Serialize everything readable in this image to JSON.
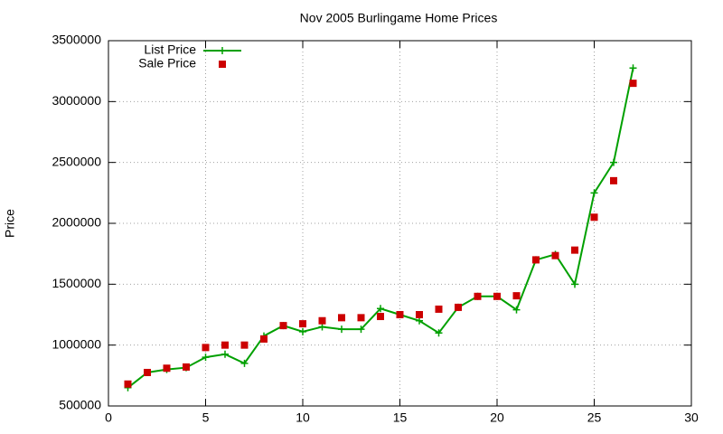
{
  "chart_data": {
    "type": "line",
    "title": "Nov 2005 Burlingame Home Prices",
    "y_label": "Price",
    "x": [
      1,
      2,
      3,
      4,
      5,
      6,
      7,
      8,
      9,
      10,
      11,
      12,
      13,
      14,
      15,
      16,
      17,
      18,
      19,
      20,
      21,
      22,
      23,
      24,
      25,
      26,
      27
    ],
    "series": [
      {
        "name": "List Price",
        "color": "#00a000",
        "style": "linespoints",
        "values": [
          650000,
          775000,
          800000,
          815000,
          900000,
          925000,
          850000,
          1075000,
          1160000,
          1110000,
          1150000,
          1130000,
          1130000,
          1300000,
          1250000,
          1200000,
          1100000,
          1310000,
          1400000,
          1400000,
          1290000,
          1700000,
          1745000,
          1500000,
          2250000,
          2500000,
          3275000
        ]
      },
      {
        "name": "Sale Price",
        "color": "#cc0000",
        "style": "points",
        "values": [
          680000,
          775000,
          810000,
          820000,
          980000,
          1000000,
          1000000,
          1050000,
          1160000,
          1175000,
          1200000,
          1225000,
          1225000,
          1235000,
          1250000,
          1250000,
          1295000,
          1310000,
          1400000,
          1400000,
          1405000,
          1700000,
          1735000,
          1780000,
          2050000,
          2350000,
          3150000
        ]
      }
    ],
    "xlim": [
      0,
      30
    ],
    "xticks": [
      0,
      5,
      10,
      15,
      20,
      25,
      30
    ],
    "ylim": [
      500000,
      3500000
    ],
    "yticks": [
      500000,
      1000000,
      1500000,
      2000000,
      2500000,
      3000000,
      3500000
    ],
    "grid": true,
    "legend": "top-left"
  }
}
